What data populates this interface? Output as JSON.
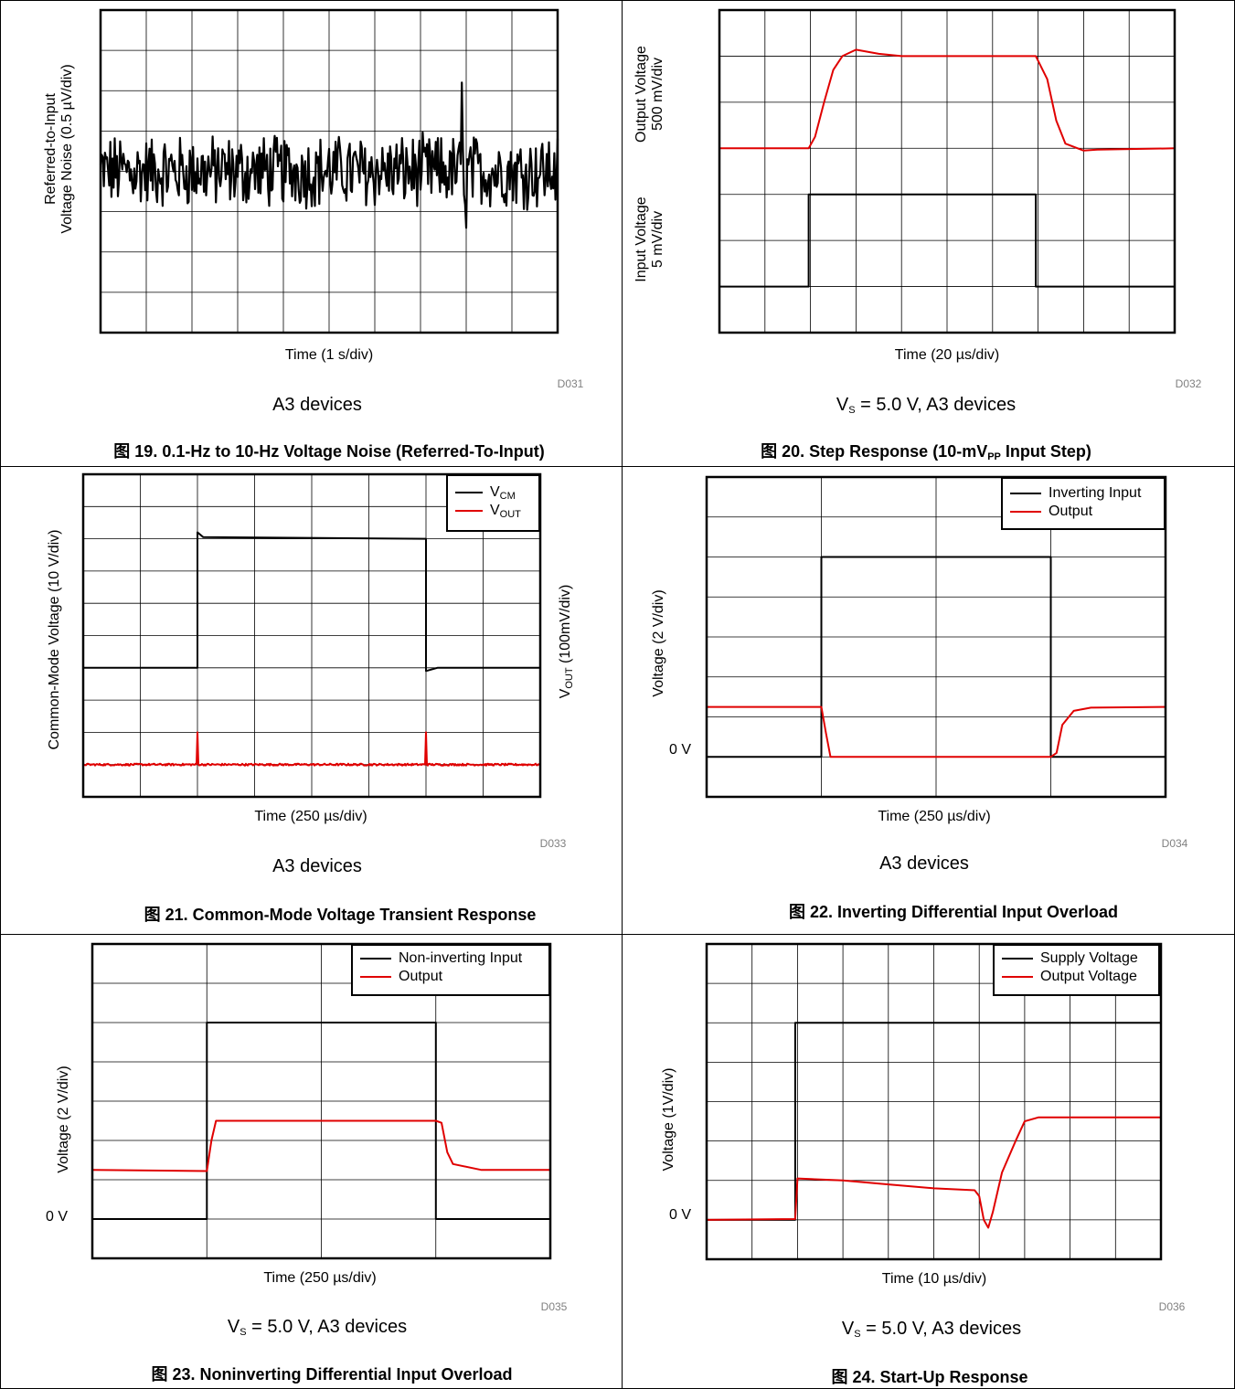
{
  "colors": {
    "black_trace": "#000000",
    "red_trace": "#e00000",
    "grid": "#000000"
  },
  "chart_data": [
    {
      "type": "line",
      "title": "0.1-Hz to 10-Hz Voltage Noise (Referred-To-Input)",
      "caption_prefix": "图 19.",
      "caption": "0.1-Hz to 10-Hz Voltage Noise (Referred-To-Input)",
      "xlabel": "Time (1 s/div)",
      "ylabel_lines": [
        "Referred-to-Input",
        "Voltage Noise (0.5 µV/div)"
      ],
      "conditions": "A3 devices",
      "code": "D031",
      "divisions": {
        "x": 10,
        "y": 8
      },
      "xlim": [
        0,
        10
      ],
      "ylim": [
        -4,
        4
      ],
      "series": [
        {
          "color": "black",
          "noise_rms_div": 0.4,
          "spikes": [
            {
              "x": 7.9,
              "y": 2.2
            },
            {
              "x": 8.0,
              "y": -1.4
            }
          ]
        }
      ]
    },
    {
      "type": "line",
      "title": "Step Response (10-mVPP Input Step)",
      "caption_prefix": "图 20.",
      "caption": "Step Response (10-mV",
      "caption_sub": "PP",
      "caption_tail": " Input Step)",
      "xlabel": "Time (20 µs/div)",
      "ylabel_upper": [
        "Output Voltage",
        "500 mV/div"
      ],
      "ylabel_lower": [
        "Input Voltage",
        "5 mV/div"
      ],
      "conditions": "V",
      "conditions_sub": "S",
      "conditions_tail": " = 5.0 V, A3 devices",
      "code": "D032",
      "divisions": {
        "x": 10,
        "y": 7
      },
      "xlim": [
        0,
        10
      ],
      "ylim": [
        0,
        7
      ],
      "series": [
        {
          "color": "red",
          "points": [
            [
              0,
              4
            ],
            [
              1.96,
              4
            ],
            [
              2.1,
              4.25
            ],
            [
              2.3,
              5.0
            ],
            [
              2.5,
              5.7
            ],
            [
              2.7,
              6.0
            ],
            [
              3.0,
              6.14
            ],
            [
              3.5,
              6.05
            ],
            [
              4.0,
              6.0
            ],
            [
              6.95,
              6.0
            ],
            [
              7.2,
              5.5
            ],
            [
              7.4,
              4.6
            ],
            [
              7.6,
              4.1
            ],
            [
              8.0,
              3.95
            ],
            [
              8.3,
              3.97
            ],
            [
              10,
              4
            ]
          ]
        },
        {
          "color": "black",
          "points": [
            [
              0,
              1
            ],
            [
              1.96,
              1
            ],
            [
              1.96,
              3
            ],
            [
              6.95,
              3
            ],
            [
              6.95,
              1
            ],
            [
              10,
              1
            ]
          ]
        }
      ]
    },
    {
      "type": "line",
      "title": "Common-Mode Voltage Transient Response",
      "caption_prefix": "图 21.",
      "caption": "Common-Mode Voltage Transient Response",
      "xlabel": "Time (250 µs/div)",
      "ylabel_left": "Common-Mode Voltage (10 V/div)",
      "ylabel_right": "V",
      "ylabel_right_sub": "OUT",
      "ylabel_right_tail": " (100mV/div)",
      "conditions": "A3 devices",
      "code": "D033",
      "divisions": {
        "x": 8,
        "y": 10
      },
      "xlim": [
        0,
        8
      ],
      "ylim": [
        0,
        10
      ],
      "legend": [
        {
          "label": "V",
          "sub": "CM",
          "color": "black"
        },
        {
          "label": "V",
          "sub": "OUT",
          "color": "red"
        }
      ],
      "series": [
        {
          "name": "VCM",
          "color": "black",
          "points": [
            [
              0,
              4
            ],
            [
              2,
              4
            ],
            [
              2,
              8.2
            ],
            [
              2.1,
              8.05
            ],
            [
              6,
              8.0
            ],
            [
              6,
              3.9
            ],
            [
              6.2,
              4
            ],
            [
              8,
              4
            ]
          ]
        },
        {
          "name": "VOUT",
          "color": "red",
          "baseline": 1,
          "spikes": [
            {
              "x": 2.0,
              "y": 2.0
            },
            {
              "x": 6.0,
              "y": 2.0
            }
          ]
        }
      ]
    },
    {
      "type": "line",
      "title": "Inverting Differential Input Overload",
      "caption_prefix": "图 22.",
      "caption": "Inverting Differential Input Overload",
      "xlabel": "Time (250 µs/div)",
      "ylabel": "Voltage (2 V/div)",
      "zero_label": "0 V",
      "conditions": "A3 devices",
      "code": "D034",
      "divisions": {
        "x": 4,
        "y": 8
      },
      "xlim": [
        0,
        4
      ],
      "ylim": [
        -1,
        7
      ],
      "legend": [
        {
          "label": "Inverting Input",
          "color": "black"
        },
        {
          "label": "Output",
          "color": "red"
        }
      ],
      "series": [
        {
          "name": "Inverting Input",
          "color": "black",
          "points": [
            [
              0,
              0
            ],
            [
              1,
              0
            ],
            [
              1,
              5
            ],
            [
              3,
              5
            ],
            [
              3,
              0
            ],
            [
              4,
              0
            ]
          ]
        },
        {
          "name": "Output",
          "color": "red",
          "points": [
            [
              0,
              1.25
            ],
            [
              1,
              1.25
            ],
            [
              1.04,
              0.6
            ],
            [
              1.08,
              0
            ],
            [
              3.0,
              0
            ],
            [
              3.05,
              0.1
            ],
            [
              3.1,
              0.8
            ],
            [
              3.2,
              1.15
            ],
            [
              3.35,
              1.23
            ],
            [
              4,
              1.25
            ]
          ]
        }
      ]
    },
    {
      "type": "line",
      "title": "Noninverting Differential Input Overload",
      "caption_prefix": "图 23.",
      "caption": "Noninverting Differential Input Overload",
      "xlabel": "Time (250 µs/div)",
      "ylabel": "Voltage (2 V/div)",
      "zero_label": "0 V",
      "conditions": "V",
      "conditions_sub": "S",
      "conditions_tail": " = 5.0 V, A3 devices",
      "code": "D035",
      "divisions": {
        "x": 4,
        "y": 8
      },
      "xlim": [
        0,
        4
      ],
      "ylim": [
        -1,
        7
      ],
      "legend": [
        {
          "label": "Non-inverting Input",
          "color": "black"
        },
        {
          "label": "Output",
          "color": "red"
        }
      ],
      "series": [
        {
          "name": "Non-inverting Input",
          "color": "black",
          "points": [
            [
              0,
              0
            ],
            [
              1,
              0
            ],
            [
              1,
              5
            ],
            [
              3,
              5
            ],
            [
              3,
              0
            ],
            [
              4,
              0
            ]
          ]
        },
        {
          "name": "Output",
          "color": "red",
          "points": [
            [
              0,
              1.25
            ],
            [
              1,
              1.22
            ],
            [
              1.04,
              2.0
            ],
            [
              1.08,
              2.5
            ],
            [
              3.0,
              2.5
            ],
            [
              3.05,
              2.45
            ],
            [
              3.1,
              1.7
            ],
            [
              3.15,
              1.4
            ],
            [
              3.4,
              1.25
            ],
            [
              4,
              1.25
            ]
          ]
        }
      ]
    },
    {
      "type": "line",
      "title": "Start-Up Response",
      "caption_prefix": "图 24.",
      "caption": "Start-Up Response",
      "xlabel": "Time (10 µs/div)",
      "ylabel": "Voltage (1V/div)",
      "zero_label": "0 V",
      "conditions": "V",
      "conditions_sub": "S",
      "conditions_tail": " = 5.0 V, A3 devices",
      "code": "D036",
      "divisions": {
        "x": 10,
        "y": 8
      },
      "xlim": [
        0,
        10
      ],
      "ylim": [
        -1,
        7
      ],
      "legend": [
        {
          "label": "Supply Voltage",
          "color": "black"
        },
        {
          "label": "Output Voltage",
          "color": "red"
        }
      ],
      "series": [
        {
          "name": "Supply Voltage",
          "color": "black",
          "points": [
            [
              0,
              0
            ],
            [
              1.95,
              0
            ],
            [
              1.95,
              5
            ],
            [
              10,
              5
            ]
          ]
        },
        {
          "name": "Output Voltage",
          "color": "red",
          "points": [
            [
              0,
              0
            ],
            [
              1.95,
              0.02
            ],
            [
              2.0,
              1.05
            ],
            [
              3,
              1.0
            ],
            [
              4,
              0.9
            ],
            [
              5,
              0.8
            ],
            [
              5.9,
              0.75
            ],
            [
              6.0,
              0.6
            ],
            [
              6.1,
              0.0
            ],
            [
              6.2,
              -0.2
            ],
            [
              6.3,
              0.2
            ],
            [
              6.5,
              1.2
            ],
            [
              6.8,
              2.0
            ],
            [
              7.0,
              2.5
            ],
            [
              7.3,
              2.6
            ],
            [
              10,
              2.6
            ]
          ]
        }
      ]
    }
  ]
}
